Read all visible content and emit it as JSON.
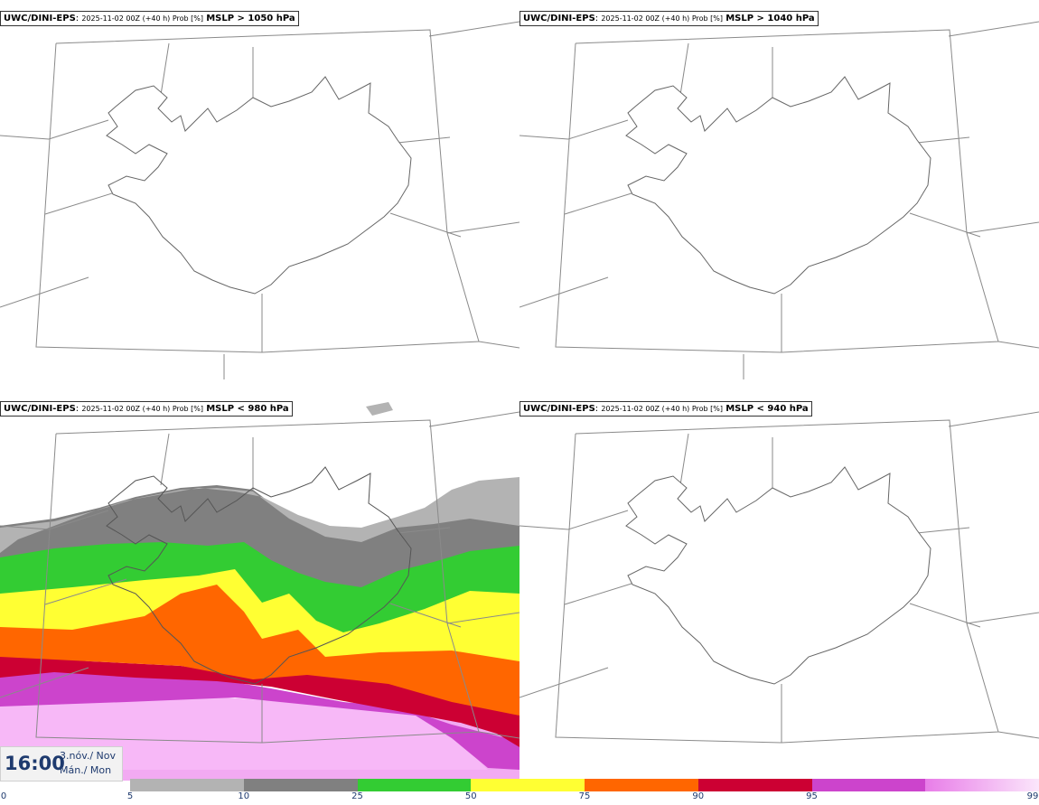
{
  "panels": [
    {
      "model": "UWC/DINI-EPS",
      "meta": "2025-11-02 00Z (+40 h) Prob [%]",
      "cond": "MSLP > 1050 hPa"
    },
    {
      "model": "UWC/DINI-EPS",
      "meta": "2025-11-02 00Z (+40 h) Prob [%]",
      "cond": "MSLP > 1040 hPa"
    },
    {
      "model": "UWC/DINI-EPS",
      "meta": "2025-11-02 00Z (+40 h) Prob [%]",
      "cond": "MSLP < 980 hPa"
    },
    {
      "model": "UWC/DINI-EPS",
      "meta": "2025-11-02 00Z (+40 h) Prob [%]",
      "cond": "MSLP < 940 hPa"
    }
  ],
  "time": {
    "hour": "16:00",
    "date": "3.nóv./ Nov",
    "day": "Mán./ Mon"
  },
  "colorbar": {
    "ticks": [
      "0",
      "5",
      "10",
      "25",
      "50",
      "75",
      "90",
      "95",
      "99"
    ],
    "colors": [
      "#b3b3b3",
      "#808080",
      "#33cc33",
      "#ffff33",
      "#ff6600",
      "#cc0033",
      "#cc44cc",
      "#f2aaf2"
    ]
  }
}
